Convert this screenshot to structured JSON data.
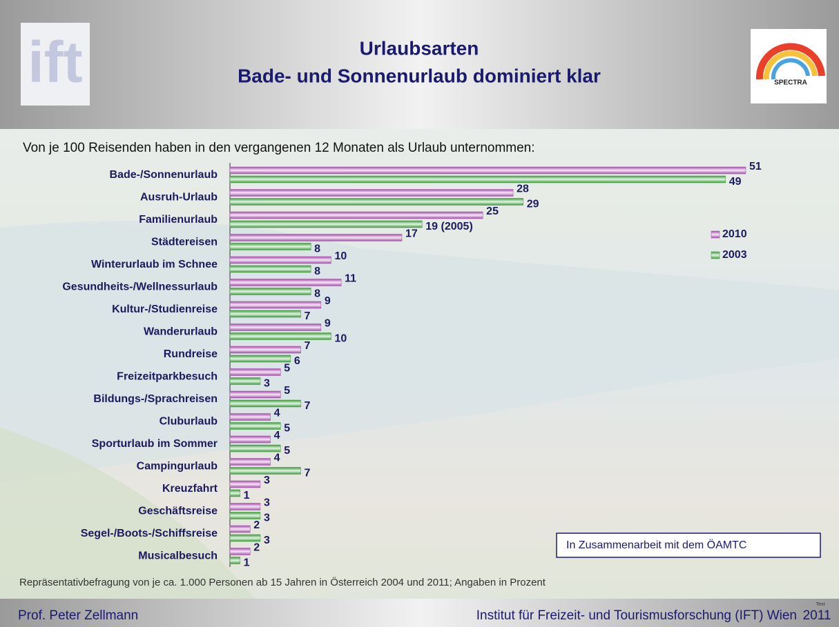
{
  "header": {
    "logo_left": "ift",
    "title": "Urlaubsarten",
    "subtitle": "Bade- und Sonnenurlaub dominiert klar",
    "logo_right": "SPECTRA"
  },
  "chart_data": {
    "type": "bar",
    "orientation": "horizontal",
    "title": "Von je 100 Reisenden haben in den vergangenen 12 Monaten als Urlaub unternommen:",
    "categories": [
      "Bade-/Sonnenurlaub",
      "Ausruh-Urlaub",
      "Familienurlaub",
      "Städtereisen",
      "Winterurlaub im Schnee",
      "Gesundheits-/Wellnessurlaub",
      "Kultur-/Studienreise",
      "Wanderurlaub",
      "Rundreise",
      "Freizeitparkbesuch",
      "Bildungs-/Sprachreisen",
      "Cluburlaub",
      "Sporturlaub im Sommer",
      "Campingurlaub",
      "Kreuzfahrt",
      "Geschäftsreise",
      "Segel-/Boots-/Schiffsreise",
      "Musicalbesuch"
    ],
    "series": [
      {
        "name": "2010",
        "color": "#a34fa8",
        "values": [
          51,
          28,
          25,
          17,
          10,
          11,
          9,
          9,
          7,
          5,
          5,
          4,
          4,
          4,
          3,
          3,
          2,
          2
        ]
      },
      {
        "name": "2003",
        "color": "#3d9a3d",
        "values": [
          49,
          29,
          19,
          8,
          8,
          8,
          7,
          10,
          6,
          3,
          7,
          5,
          5,
          7,
          1,
          3,
          3,
          1
        ],
        "value_labels": [
          "49",
          "29",
          "19 (2005)",
          "8",
          "8",
          "8",
          "7",
          "10",
          "6",
          "3",
          "7",
          "5",
          "5",
          "7",
          "1",
          "3",
          "3",
          "1"
        ]
      }
    ],
    "legend": "right"
  },
  "annotation": "In Zusammenarbeit mit dem ÖAMTC",
  "footnote": "Repräsentativbefragung von je ca. 1.000 Personen ab 15 Jahren in Österreich 2004 und 2011; Angaben in Prozent",
  "footer": {
    "author": "Prof. Peter Zellmann",
    "institute": "Institut für Freizeit- und Tourismusforschung (IFT) Wien",
    "year": "2011",
    "tag": "Text"
  }
}
